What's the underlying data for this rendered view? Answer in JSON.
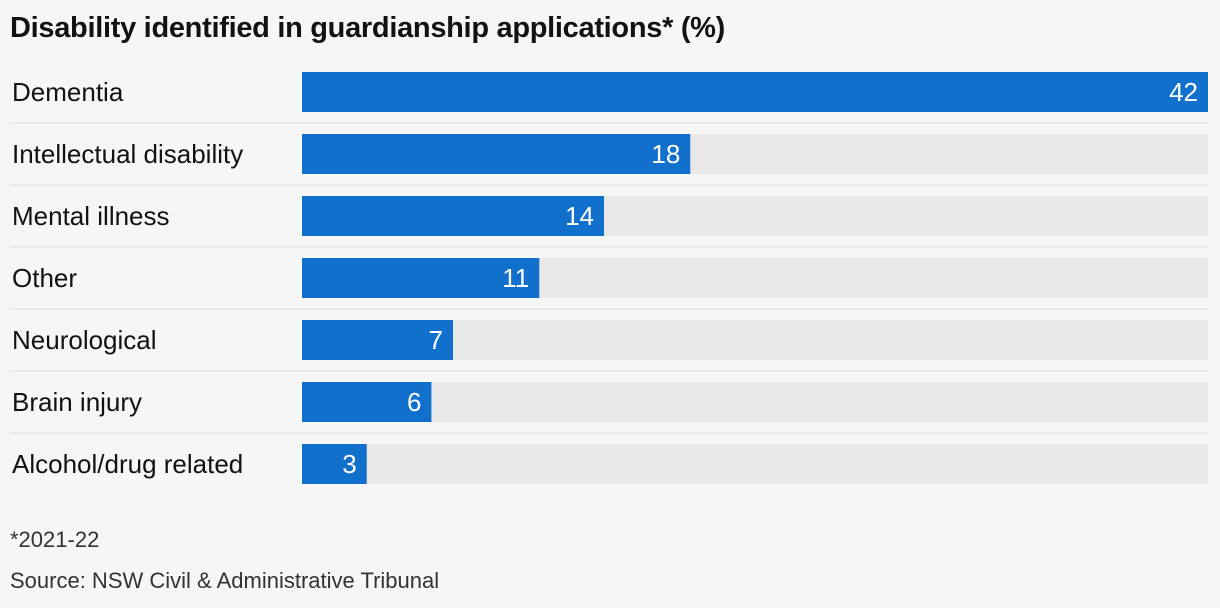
{
  "chart_data": {
    "type": "bar",
    "orientation": "horizontal",
    "title": "Disability identified in guardianship applications* (%)",
    "categories": [
      "Dementia",
      "Intellectual disability",
      "Mental illness",
      "Other",
      "Neurological",
      "Brain injury",
      "Alcohol/drug related"
    ],
    "values": [
      42,
      18,
      14,
      11,
      7,
      6,
      3
    ],
    "xlim": [
      0,
      42
    ],
    "grid": false,
    "colors": {
      "bar": "#1170cc",
      "track": "#e8e8e8",
      "separator": "#dcdcdc"
    }
  },
  "footnote": "*2021-22",
  "source": "Source: NSW Civil & Administrative Tribunal"
}
